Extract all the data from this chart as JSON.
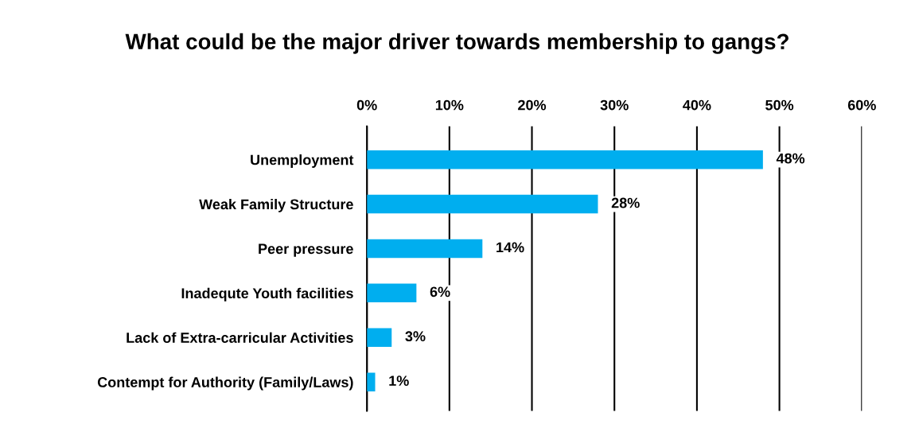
{
  "chart_data": {
    "type": "bar",
    "orientation": "horizontal",
    "title": "What could be the major driver towards membership to gangs?",
    "categories": [
      "Unemployment",
      "Weak Family Structure",
      "Peer pressure",
      "Inadequte Youth facilities",
      "Lack of Extra-carricular Activities",
      "Contempt for Authority (Family/Laws)"
    ],
    "values": [
      48,
      28,
      14,
      6,
      3,
      1
    ],
    "value_labels": [
      "48%",
      "28%",
      "14%",
      "6%",
      "3%",
      "1%"
    ],
    "color": "#00aeef",
    "xlim": [
      0,
      60
    ],
    "xticks": [
      {
        "value": 0,
        "label": "0%"
      },
      {
        "value": 10,
        "label": "10%"
      },
      {
        "value": 20,
        "label": "20%"
      },
      {
        "value": 30,
        "label": "30%"
      },
      {
        "value": 40,
        "label": "40%"
      },
      {
        "value": 50,
        "label": "50%"
      },
      {
        "value": 60,
        "label": "60%"
      }
    ],
    "grid": "x"
  }
}
